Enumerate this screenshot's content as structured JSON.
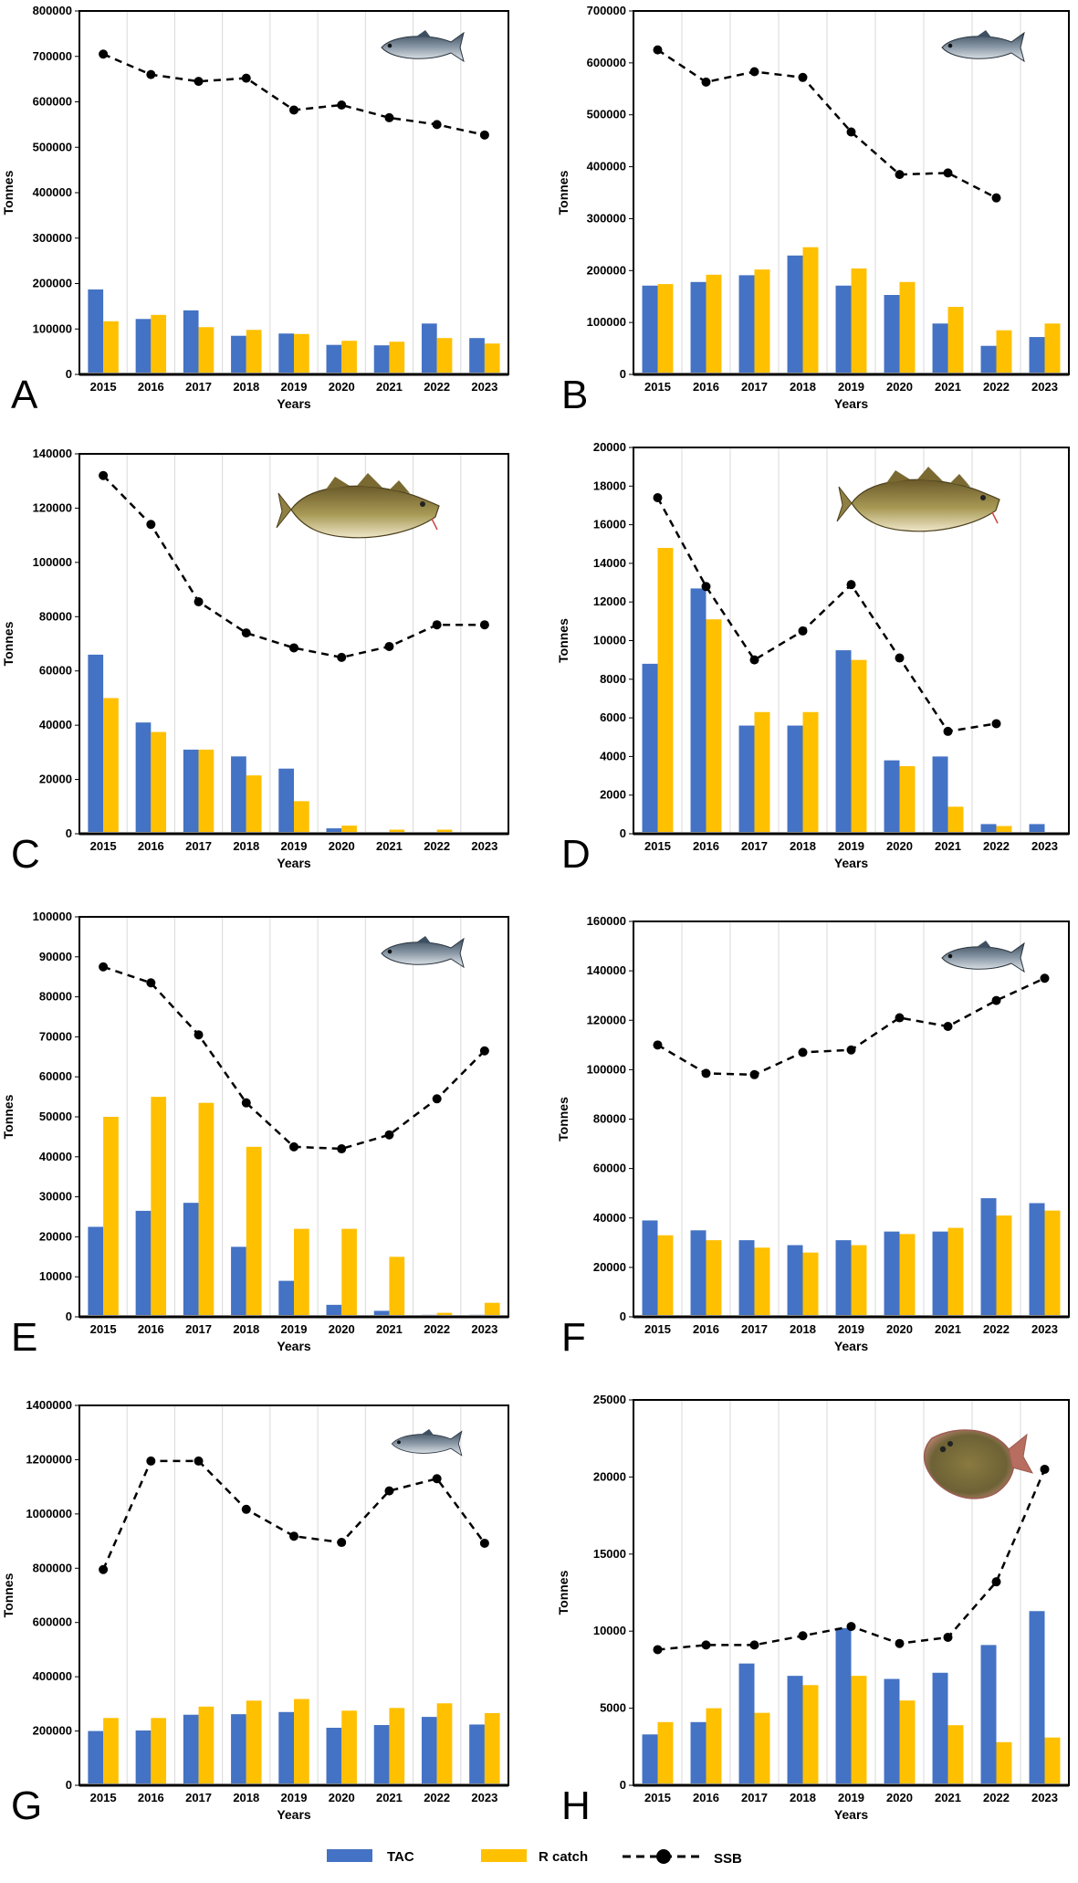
{
  "colors": {
    "tac": "#4472C4",
    "rcatch": "#FFC000",
    "ssb": "#000000",
    "grid": "#d9d9d9",
    "baseline": "#808080"
  },
  "legend": {
    "tac": "TAC",
    "rcatch": "R catch",
    "ssb": "SSB"
  },
  "chart_data": [
    {
      "panel": "A",
      "type": "bar",
      "ylabel": "Tonnes",
      "xlabel": "Years",
      "ylim": [
        0,
        800000
      ],
      "ytick_step": 100000,
      "icon": "herring-icon",
      "categories": [
        "2015",
        "2016",
        "2017",
        "2018",
        "2019",
        "2020",
        "2021",
        "2022",
        "2023"
      ],
      "series": [
        {
          "name": "TAC",
          "kind": "bar",
          "values": [
            187000,
            122000,
            141000,
            85000,
            90000,
            65000,
            64000,
            112000,
            80000
          ]
        },
        {
          "name": "R catch",
          "kind": "bar",
          "values": [
            117000,
            131000,
            104000,
            98000,
            89000,
            74000,
            72000,
            80000,
            68000
          ]
        },
        {
          "name": "SSB",
          "kind": "line",
          "values": [
            705000,
            660000,
            645000,
            652000,
            582000,
            593000,
            565000,
            550000,
            527000
          ]
        }
      ]
    },
    {
      "panel": "B",
      "type": "bar",
      "ylabel": "Tonnes",
      "xlabel": "Years",
      "ylim": [
        0,
        700000
      ],
      "ytick_step": 100000,
      "icon": "herring-icon",
      "categories": [
        "2015",
        "2016",
        "2017",
        "2018",
        "2019",
        "2020",
        "2021",
        "2022",
        "2023"
      ],
      "series": [
        {
          "name": "TAC",
          "kind": "bar",
          "values": [
            171000,
            178000,
            191000,
            229000,
            171000,
            153000,
            98000,
            55000,
            72000
          ]
        },
        {
          "name": "R catch",
          "kind": "bar",
          "values": [
            174000,
            192000,
            202000,
            245000,
            204000,
            178000,
            130000,
            85000,
            98000
          ]
        },
        {
          "name": "SSB",
          "kind": "line",
          "values": [
            625000,
            563000,
            583000,
            572000,
            467000,
            385000,
            388000,
            340000,
            null
          ]
        }
      ]
    },
    {
      "panel": "C",
      "type": "bar",
      "ylabel": "Tonnes",
      "xlabel": "Years",
      "ylim": [
        0,
        140000
      ],
      "ytick_step": 20000,
      "icon": "cod-icon",
      "categories": [
        "2015",
        "2016",
        "2017",
        "2018",
        "2019",
        "2020",
        "2021",
        "2022",
        "2023"
      ],
      "series": [
        {
          "name": "TAC",
          "kind": "bar",
          "values": [
            66000,
            41000,
            31000,
            28500,
            24000,
            2000,
            500,
            300,
            300
          ]
        },
        {
          "name": "R catch",
          "kind": "bar",
          "values": [
            50000,
            37500,
            31000,
            21500,
            12000,
            3000,
            1500,
            1500,
            500
          ]
        },
        {
          "name": "SSB",
          "kind": "line",
          "values": [
            132000,
            114000,
            85500,
            74000,
            68500,
            65000,
            69000,
            77000,
            77000
          ]
        }
      ]
    },
    {
      "panel": "D",
      "type": "bar",
      "ylabel": "Tonnes",
      "xlabel": "Years",
      "ylim": [
        0,
        20000
      ],
      "ytick_step": 2000,
      "icon": "cod-icon",
      "categories": [
        "2015",
        "2016",
        "2017",
        "2018",
        "2019",
        "2020",
        "2021",
        "2022",
        "2023"
      ],
      "series": [
        {
          "name": "TAC",
          "kind": "bar",
          "values": [
            8800,
            12700,
            5600,
            5600,
            9500,
            3800,
            4000,
            500,
            500
          ]
        },
        {
          "name": "R catch",
          "kind": "bar",
          "values": [
            14800,
            11100,
            6300,
            6300,
            9000,
            3500,
            1400,
            400,
            0
          ]
        },
        {
          "name": "SSB",
          "kind": "line",
          "values": [
            17400,
            12800,
            9000,
            10500,
            12900,
            9100,
            5300,
            5700,
            null
          ]
        }
      ]
    },
    {
      "panel": "E",
      "type": "bar",
      "ylabel": "Tonnes",
      "xlabel": "Years",
      "ylim": [
        0,
        100000
      ],
      "ytick_step": 10000,
      "icon": "herring-icon",
      "categories": [
        "2015",
        "2016",
        "2017",
        "2018",
        "2019",
        "2020",
        "2021",
        "2022",
        "2023"
      ],
      "series": [
        {
          "name": "TAC",
          "kind": "bar",
          "values": [
            22500,
            26500,
            28500,
            17500,
            9000,
            3000,
            1500,
            500,
            500
          ]
        },
        {
          "name": "R catch",
          "kind": "bar",
          "values": [
            50000,
            55000,
            53500,
            42500,
            22000,
            22000,
            15000,
            1000,
            3500
          ]
        },
        {
          "name": "SSB",
          "kind": "line",
          "values": [
            87500,
            83500,
            70500,
            53500,
            42500,
            42000,
            45500,
            54500,
            66500
          ]
        }
      ]
    },
    {
      "panel": "F",
      "type": "bar",
      "ylabel": "Tonnes",
      "xlabel": "Years",
      "ylim": [
        0,
        160000
      ],
      "ytick_step": 20000,
      "icon": "herring-icon",
      "categories": [
        "2015",
        "2016",
        "2017",
        "2018",
        "2019",
        "2020",
        "2021",
        "2022",
        "2023"
      ],
      "series": [
        {
          "name": "TAC",
          "kind": "bar",
          "values": [
            39000,
            35000,
            31000,
            29000,
            31000,
            34500,
            34500,
            48000,
            46000
          ]
        },
        {
          "name": "R catch",
          "kind": "bar",
          "values": [
            33000,
            31000,
            28000,
            26000,
            29000,
            33500,
            36000,
            41000,
            43000
          ]
        },
        {
          "name": "SSB",
          "kind": "line",
          "values": [
            110000,
            98500,
            98000,
            107000,
            108000,
            121000,
            117500,
            128000,
            137000
          ]
        }
      ]
    },
    {
      "panel": "G",
      "type": "bar",
      "ylabel": "Tonnes",
      "xlabel": "Years",
      "ylim": [
        0,
        1400000
      ],
      "ytick_step": 200000,
      "icon": "sprat-icon",
      "categories": [
        "2015",
        "2016",
        "2017",
        "2018",
        "2019",
        "2020",
        "2021",
        "2022",
        "2023"
      ],
      "series": [
        {
          "name": "TAC",
          "kind": "bar",
          "values": [
            200000,
            202000,
            260000,
            262000,
            270000,
            212000,
            222000,
            252000,
            224000
          ]
        },
        {
          "name": "R catch",
          "kind": "bar",
          "values": [
            248000,
            248000,
            290000,
            312000,
            318000,
            275000,
            285000,
            302000,
            266000
          ]
        },
        {
          "name": "SSB",
          "kind": "line",
          "values": [
            795000,
            1195000,
            1195000,
            1017000,
            918000,
            895000,
            1085000,
            1130000,
            892000
          ]
        }
      ]
    },
    {
      "panel": "H",
      "type": "bar",
      "ylabel": "Tonnes",
      "xlabel": "Years",
      "ylim": [
        0,
        25000
      ],
      "ytick_step": 5000,
      "icon": "flatfish-icon",
      "categories": [
        "2015",
        "2016",
        "2017",
        "2018",
        "2019",
        "2020",
        "2021",
        "2022",
        "2023"
      ],
      "series": [
        {
          "name": "TAC",
          "kind": "bar",
          "values": [
            3300,
            4100,
            7900,
            7100,
            10200,
            6900,
            7300,
            9100,
            11300
          ]
        },
        {
          "name": "R catch",
          "kind": "bar",
          "values": [
            4100,
            5000,
            4700,
            6500,
            7100,
            5500,
            3900,
            2800,
            3100
          ]
        },
        {
          "name": "SSB",
          "kind": "line",
          "values": [
            8800,
            9100,
            9100,
            9700,
            10300,
            9200,
            9600,
            13200,
            20500
          ]
        }
      ]
    }
  ]
}
